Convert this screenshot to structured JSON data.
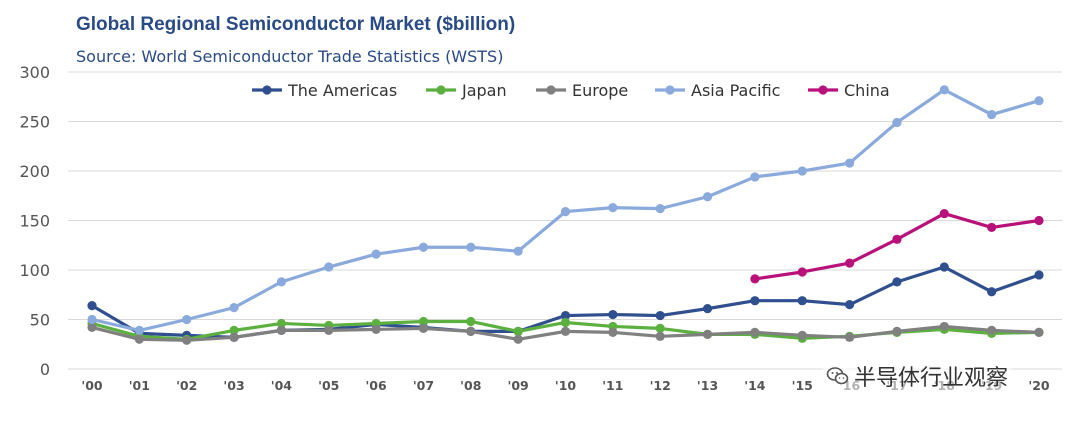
{
  "header": {
    "title": "Global Regional Semiconductor Market ($billion)",
    "subtitle": "Source: World Semiconductor Trade Statistics (WSTS)"
  },
  "watermark": {
    "text": "半导体行业观察",
    "icon": "wechat-icon"
  },
  "chart_data": {
    "type": "line",
    "title": "Global Regional Semiconductor Market ($billion)",
    "subtitle": "Source: World Semiconductor Trade Statistics (WSTS)",
    "xlabel": "",
    "ylabel": "",
    "x": [
      "'00",
      "'01",
      "'02",
      "'03",
      "'04",
      "'05",
      "'06",
      "'07",
      "'08",
      "'09",
      "'10",
      "'11",
      "'12",
      "'13",
      "'14",
      "'15",
      "'16",
      "'17",
      "'18",
      "'19",
      "'20"
    ],
    "ylim": [
      0,
      300
    ],
    "yticks": [
      0,
      50,
      100,
      150,
      200,
      250,
      300
    ],
    "grid": true,
    "legend_position": "top",
    "series": [
      {
        "name": "The Americas",
        "color": "#2f4f8f",
        "values": [
          64,
          36,
          34,
          32,
          39,
          40,
          45,
          42,
          38,
          38,
          54,
          55,
          54,
          61,
          69,
          69,
          65,
          88,
          103,
          78,
          95
        ]
      },
      {
        "name": "Japan",
        "color": "#5cb040",
        "values": [
          46,
          33,
          30,
          39,
          46,
          44,
          46,
          48,
          48,
          38,
          47,
          43,
          41,
          35,
          35,
          31,
          33,
          37,
          40,
          36,
          37
        ]
      },
      {
        "name": "Europe",
        "color": "#808080",
        "values": [
          42,
          30,
          29,
          32,
          39,
          39,
          40,
          41,
          38,
          30,
          38,
          37,
          33,
          35,
          37,
          34,
          32,
          38,
          43,
          39,
          37
        ]
      },
      {
        "name": "Asia Pacific",
        "color": "#8aa9dc",
        "values": [
          50,
          39,
          50,
          62,
          88,
          103,
          116,
          123,
          123,
          119,
          159,
          163,
          162,
          174,
          194,
          200,
          208,
          249,
          282,
          257,
          271
        ]
      },
      {
        "name": "China",
        "color": "#b8127a",
        "values": [
          null,
          null,
          null,
          null,
          null,
          null,
          null,
          null,
          null,
          null,
          null,
          null,
          null,
          null,
          91,
          98,
          107,
          131,
          157,
          143,
          150
        ]
      }
    ]
  }
}
